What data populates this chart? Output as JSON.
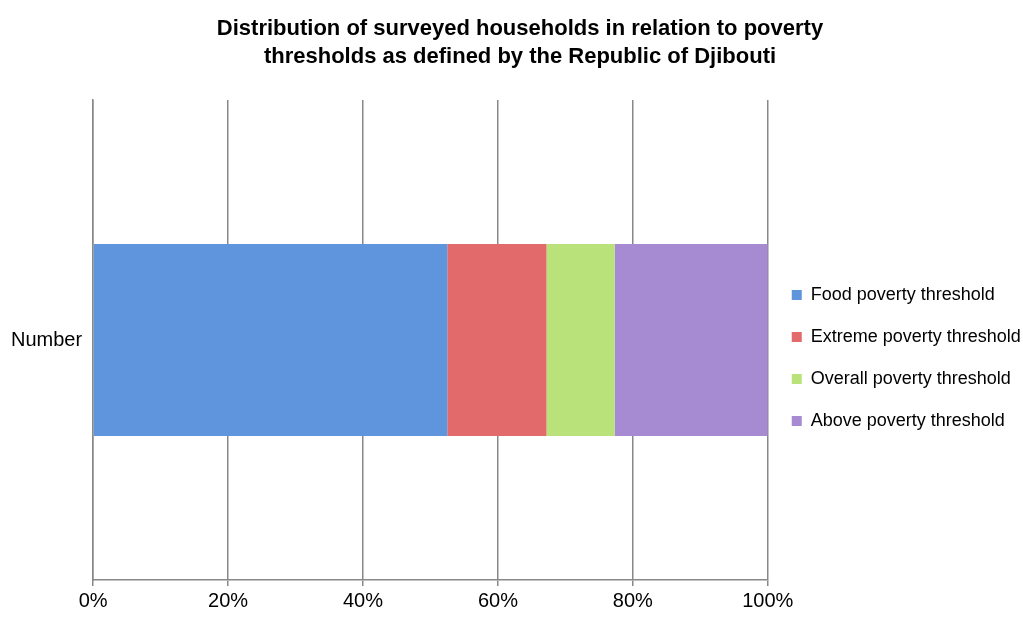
{
  "chart_data": {
    "type": "bar",
    "orientation": "horizontal",
    "stacked": true,
    "title": "Distribution of surveyed households in relation to poverty thresholds as defined by the Republic of Djibouti",
    "categories": [
      "Number"
    ],
    "series": [
      {
        "name": "Food poverty threshold",
        "color": "#5f95dc",
        "values": [
          52.5
        ]
      },
      {
        "name": "Extreme poverty threshold",
        "color": "#e26a6a",
        "values": [
          14.7
        ]
      },
      {
        "name": "Overall poverty threshold",
        "color": "#b9e27a",
        "values": [
          10.1
        ]
      },
      {
        "name": "Above poverty threshold",
        "color": "#a68ad2",
        "values": [
          22.7
        ]
      }
    ],
    "xlim": [
      0,
      100
    ],
    "xticks": [
      {
        "value": 0,
        "label": "0%"
      },
      {
        "value": 20,
        "label": "20%"
      },
      {
        "value": 40,
        "label": "40%"
      },
      {
        "value": 60,
        "label": "60%"
      },
      {
        "value": 80,
        "label": "80%"
      },
      {
        "value": 100,
        "label": "100%"
      }
    ],
    "grid": "x",
    "legend": "right"
  }
}
